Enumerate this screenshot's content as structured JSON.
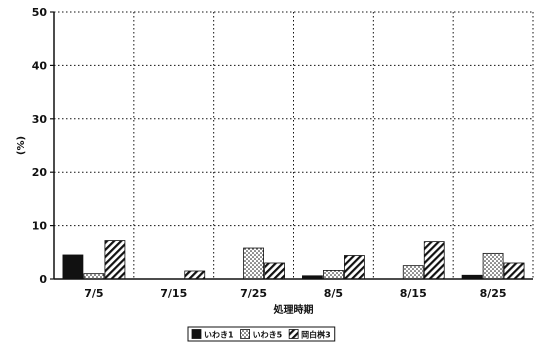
{
  "chart_data": {
    "type": "bar",
    "title": "",
    "xlabel": "処理時期",
    "ylabel": "(%)",
    "ylim": [
      0,
      50
    ],
    "yticks": [
      0,
      10,
      20,
      30,
      40,
      50
    ],
    "grid": true,
    "legend_position": "bottom",
    "categories": [
      "7/5",
      "7/15",
      "7/25",
      "8/5",
      "8/15",
      "8/25"
    ],
    "series": [
      {
        "name": "いわき1",
        "pattern": "solid",
        "values": [
          4.5,
          0,
          0,
          0.6,
          0,
          0.7
        ]
      },
      {
        "name": "いわき5",
        "pattern": "crosshatch",
        "values": [
          1.0,
          0,
          5.8,
          1.6,
          2.5,
          4.8
        ]
      },
      {
        "name": "岡白桝3",
        "pattern": "diagonal",
        "values": [
          7.2,
          1.5,
          3.0,
          4.4,
          7.0,
          3.0
        ]
      }
    ],
    "colors": {
      "ink": "#111111",
      "background": "#ffffff"
    }
  }
}
